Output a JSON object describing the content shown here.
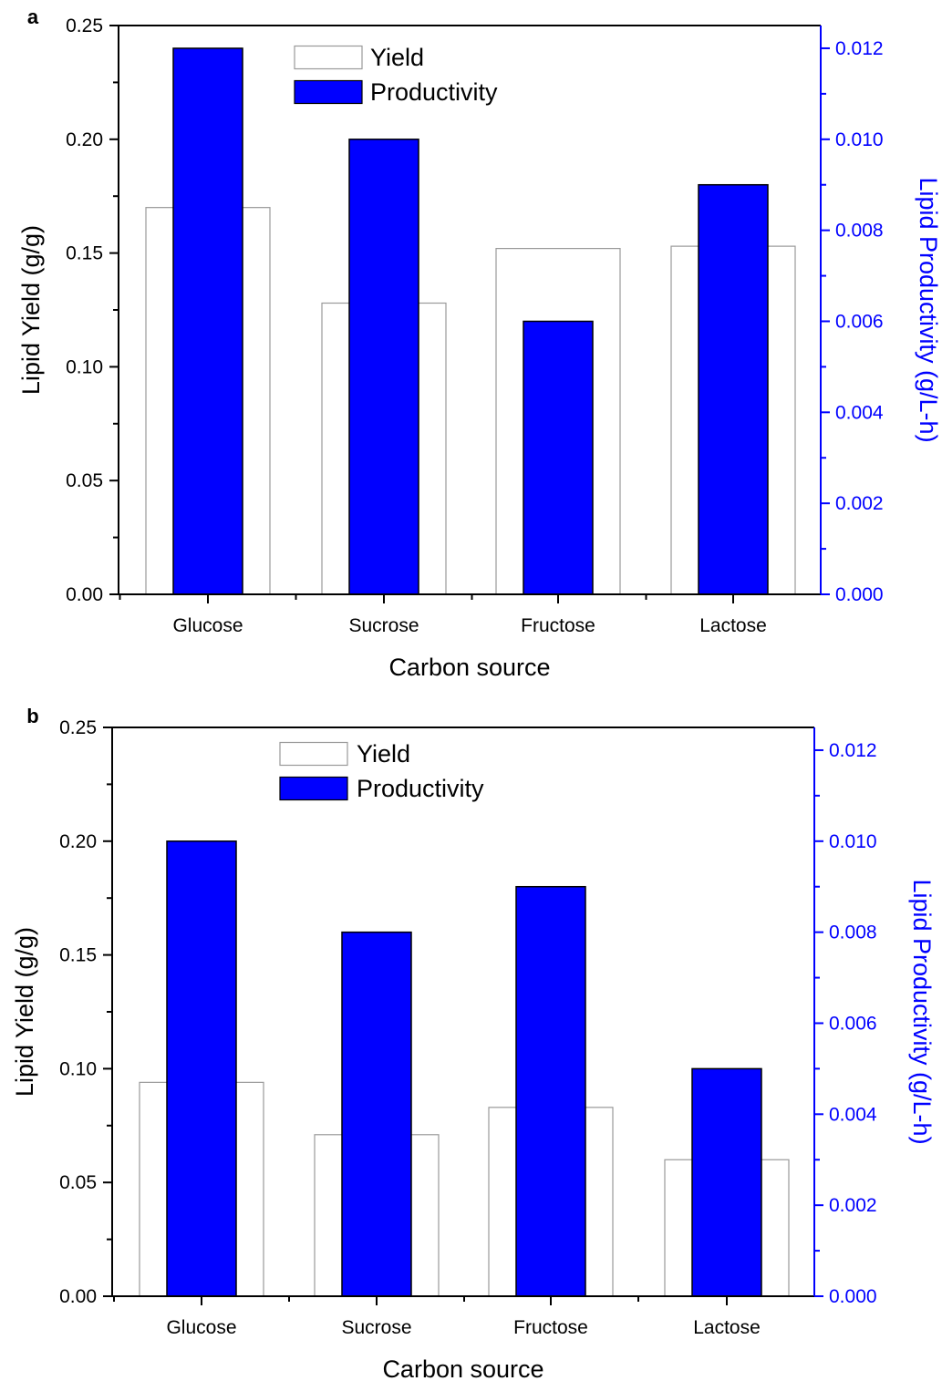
{
  "chart_data": [
    {
      "panel_label": "a",
      "type": "bar",
      "categories": [
        "Glucose",
        "Sucrose",
        "Fructose",
        "Lactose"
      ],
      "xlabel": "Carbon source",
      "ylabel": "Lipid Yield (g/g)",
      "ylabel_right": "Lipid Productivity (g/L-h)",
      "ylim": [
        0,
        0.25
      ],
      "ylim_right": [
        0,
        0.0125
      ],
      "yticks": [
        "0.00",
        "0.05",
        "0.10",
        "0.15",
        "0.20",
        "0.25"
      ],
      "yticks_right": [
        "0.000",
        "0.002",
        "0.004",
        "0.006",
        "0.008",
        "0.010",
        "0.012"
      ],
      "series": [
        {
          "name": "Yield",
          "axis": "left",
          "values": [
            0.17,
            0.128,
            0.152,
            0.153
          ],
          "color": "#ffffff",
          "stroke": "#999999"
        },
        {
          "name": "Productivity",
          "axis": "right",
          "values": [
            0.012,
            0.01,
            0.006,
            0.009
          ],
          "color": "#0000ff",
          "stroke": "#000000"
        }
      ],
      "legend_position": "top-center",
      "right_axis_color": "#0000ff"
    },
    {
      "panel_label": "b",
      "type": "bar",
      "categories": [
        "Glucose",
        "Sucrose",
        "Fructose",
        "Lactose"
      ],
      "xlabel": "Carbon source",
      "ylabel": "Lipid Yield (g/g)",
      "ylabel_right": "Lipid Productivity (g/L-h)",
      "ylim": [
        0,
        0.25
      ],
      "ylim_right": [
        0,
        0.0125
      ],
      "yticks": [
        "0.00",
        "0.05",
        "0.10",
        "0.15",
        "0.20",
        "0.25"
      ],
      "yticks_right": [
        "0.000",
        "0.002",
        "0.004",
        "0.006",
        "0.008",
        "0.010",
        "0.012"
      ],
      "series": [
        {
          "name": "Yield",
          "axis": "left",
          "values": [
            0.094,
            0.071,
            0.083,
            0.06
          ],
          "color": "#ffffff",
          "stroke": "#999999"
        },
        {
          "name": "Productivity",
          "axis": "right",
          "values": [
            0.01,
            0.008,
            0.009,
            0.005
          ],
          "color": "#0000ff",
          "stroke": "#000000"
        }
      ],
      "legend_position": "top-center",
      "right_axis_color": "#0000ff"
    }
  ]
}
